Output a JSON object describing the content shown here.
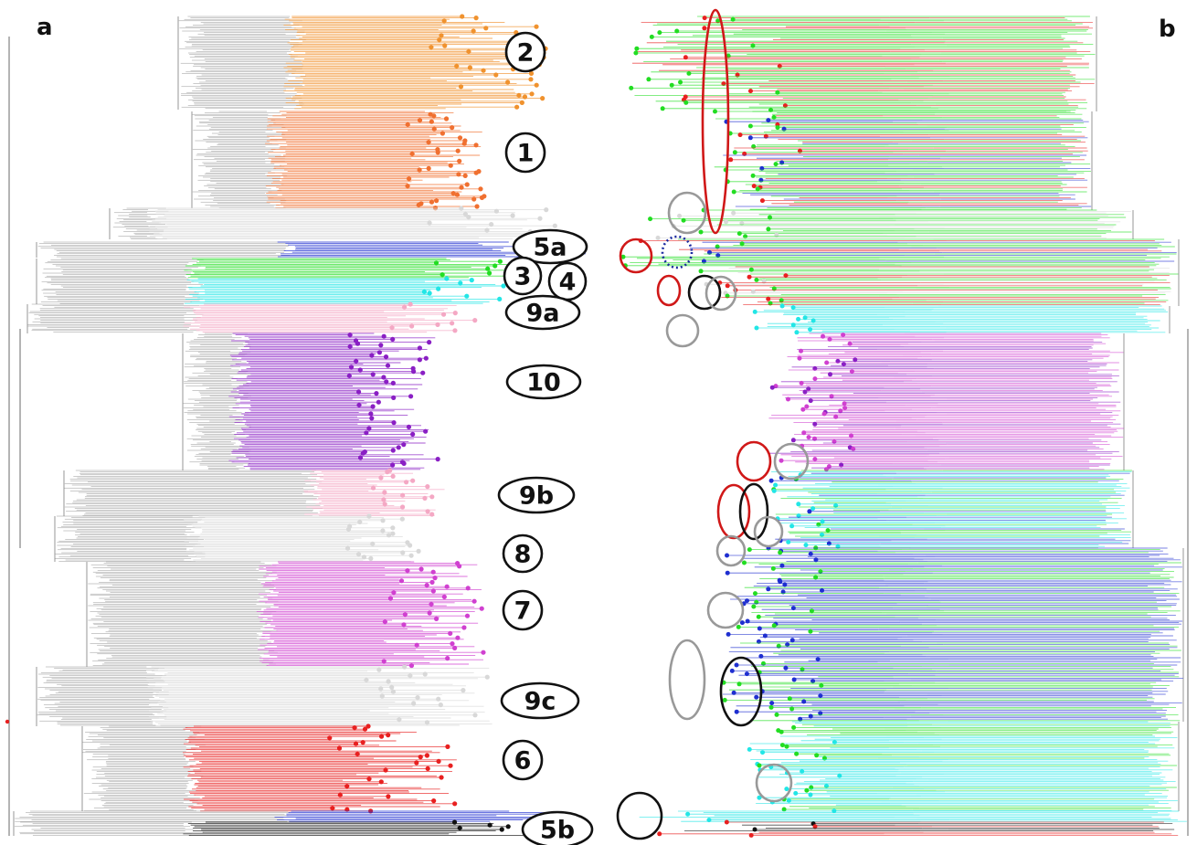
{
  "panels": [
    {
      "id": "a",
      "letter": "a"
    },
    {
      "id": "b",
      "letter": "b"
    }
  ],
  "clade_labels": [
    {
      "id": "2",
      "text": "2"
    },
    {
      "id": "1",
      "text": "1"
    },
    {
      "id": "5a",
      "text": "5a"
    },
    {
      "id": "3",
      "text": "3"
    },
    {
      "id": "4",
      "text": "4"
    },
    {
      "id": "9a",
      "text": "9a"
    },
    {
      "id": "10",
      "text": "10"
    },
    {
      "id": "9b",
      "text": "9b"
    },
    {
      "id": "8",
      "text": "8"
    },
    {
      "id": "7",
      "text": "7"
    },
    {
      "id": "9c",
      "text": "9c"
    },
    {
      "id": "6",
      "text": "6"
    },
    {
      "id": "5b",
      "text": "5b"
    }
  ],
  "colors": {
    "orange": "#f0922e",
    "coral": "#f07030",
    "light_gray": "#d8d8d8",
    "blue": "#1f2fd0",
    "green": "#22dd22",
    "cyan": "#22e6e6",
    "pink": "#f4a8c4",
    "purple": "#8a1fc4",
    "magenta": "#d040d0",
    "red": "#e82020",
    "black": "#111111",
    "branch_gray": "#6a6a6a",
    "highlight_red": "#d01818",
    "highlight_gray": "#999999",
    "highlight_black": "#111111",
    "highlight_blue_dotted": "#1a2aa0"
  }
}
